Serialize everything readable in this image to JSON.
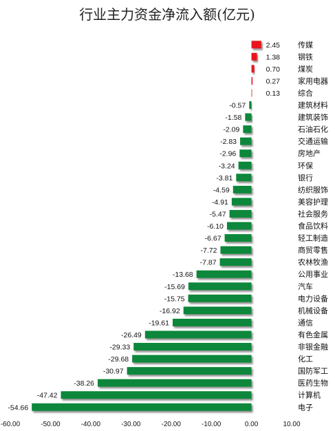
{
  "chart_data": {
    "type": "bar",
    "orientation": "horizontal",
    "title": "行业主力资金净流入额(亿元)",
    "xlabel": "",
    "ylabel": "",
    "xlim": [
      -60,
      10
    ],
    "x_ticks": [
      -60,
      -50,
      -40,
      -30,
      -20,
      -10,
      0,
      10
    ],
    "x_tick_labels": [
      "-60.00",
      "-50.00",
      "-40.00",
      "-30.00",
      "-20.00",
      "-10.00",
      "0.00",
      "10.00"
    ],
    "grid": false,
    "legend": "none",
    "colors": {
      "positive": "#e8191c",
      "negative": "#11873a"
    },
    "categories": [
      "传媒",
      "钢铁",
      "煤炭",
      "家用电器",
      "综合",
      "建筑材料",
      "建筑装饰",
      "石油石化",
      "交通运输",
      "房地产",
      "环保",
      "银行",
      "纺织服饰",
      "美容护理",
      "社会服务",
      "食品饮料",
      "轻工制造",
      "商贸零售",
      "农林牧渔",
      "公用事业",
      "汽车",
      "电力设备",
      "机械设备",
      "通信",
      "有色金属",
      "非银金融",
      "化工",
      "国防军工",
      "医药生物",
      "计算机",
      "电子"
    ],
    "values": [
      2.45,
      1.38,
      0.7,
      0.27,
      0.13,
      -0.57,
      -1.58,
      -2.09,
      -2.83,
      -2.96,
      -3.24,
      -3.81,
      -4.59,
      -4.91,
      -5.47,
      -6.1,
      -6.67,
      -7.72,
      -7.87,
      -13.68,
      -15.69,
      -15.75,
      -16.92,
      -19.61,
      -26.49,
      -29.33,
      -29.68,
      -30.97,
      -38.26,
      -47.42,
      -54.66
    ],
    "value_labels": [
      "2.45",
      "1.38",
      "0.70",
      "0.27",
      "0.13",
      "-0.57",
      "-1.58",
      "-2.09",
      "-2.83",
      "-2.96",
      "-3.24",
      "-3.81",
      "-4.59",
      "-4.91",
      "-5.47",
      "-6.10",
      "-6.67",
      "-7.72",
      "-7.87",
      "-13.68",
      "-15.69",
      "-15.75",
      "-16.92",
      "-19.61",
      "-26.49",
      "-29.33",
      "-29.68",
      "-30.97",
      "-38.26",
      "-47.42",
      "-54.66"
    ]
  }
}
